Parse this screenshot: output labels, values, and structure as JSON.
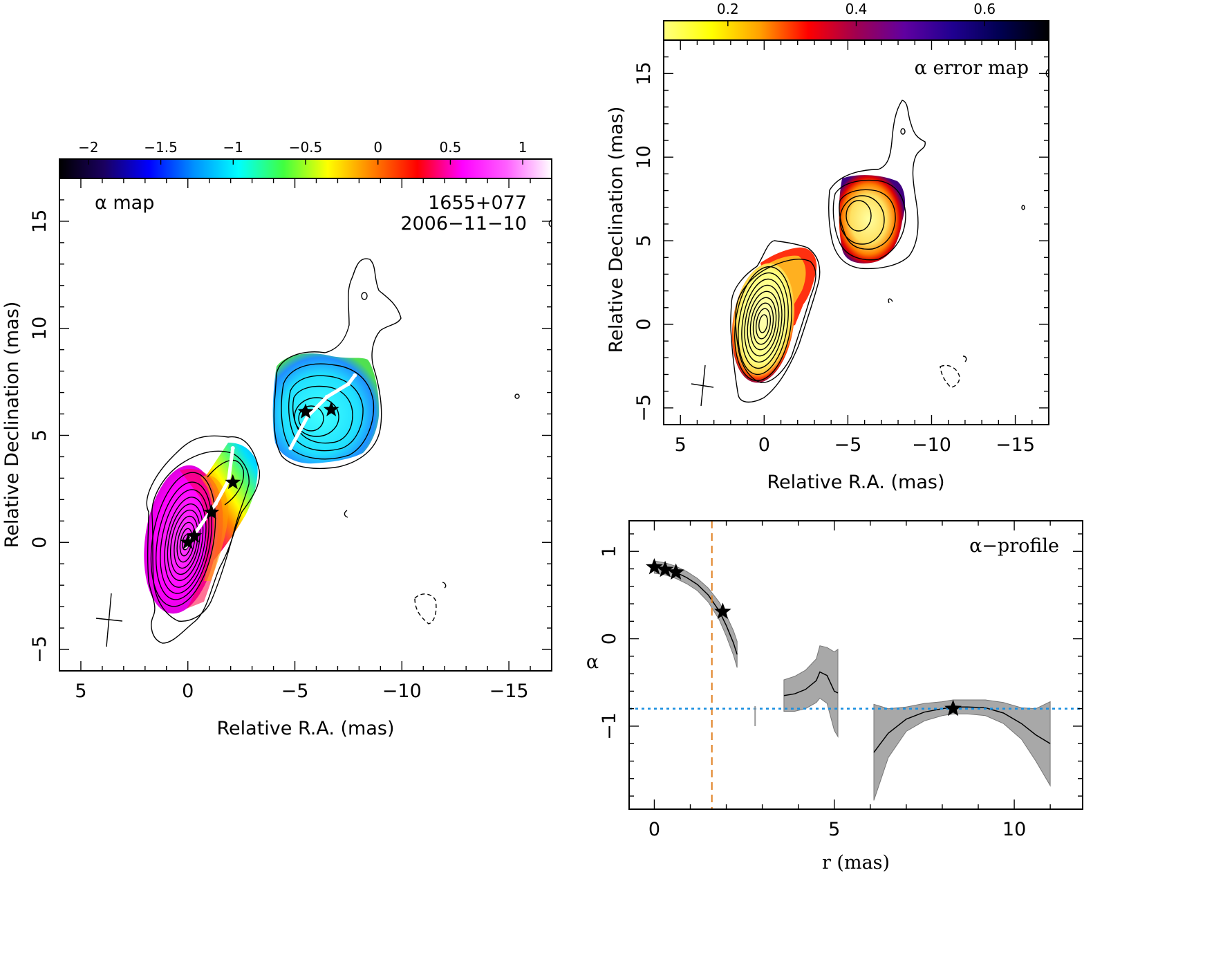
{
  "colors": {
    "alpha_ramp": [
      "#000000",
      "#1a0060",
      "#0000ff",
      "#0090ff",
      "#00ffff",
      "#40ff40",
      "#ffff00",
      "#ff8000",
      "#ff0000",
      "#ff00ff",
      "#ff60ff",
      "#ffffff"
    ],
    "error_ramp": [
      "#ffff80",
      "#ffff00",
      "#ffa000",
      "#ff0000",
      "#a00050",
      "#6000a0",
      "#200090",
      "#000050",
      "#000000"
    ],
    "profile_band": "#a8a8a8",
    "orange_dashed": "#e08020",
    "blue_dotted": "#1a8fe0"
  },
  "chart_data": [
    {
      "id": "alpha-map",
      "type": "heatmap",
      "panel_label": "α map",
      "source_name": "1655+077",
      "epoch": "2006−11−10",
      "xlabel": "Relative R.A. (mas)",
      "ylabel": "Relative Declination (mas)",
      "xlim": [
        6,
        -17
      ],
      "ylim": [
        -6,
        17
      ],
      "xticks": [
        5,
        0,
        -5,
        -10,
        -15
      ],
      "yticks": [
        -5,
        0,
        5,
        10,
        15
      ],
      "xtick_labels": [
        "5",
        "0",
        "−5",
        "−10",
        "−15"
      ],
      "ytick_labels": [
        "−5",
        "0",
        "5",
        "10",
        "15"
      ],
      "colorbar": {
        "range": [
          -2.2,
          1.2
        ],
        "ticks": [
          -2,
          -1.5,
          -1,
          -0.5,
          0,
          0.5,
          1
        ],
        "tick_labels": [
          "−2",
          "−1.5",
          "−1",
          "−0.5",
          "0",
          "0.5",
          "1"
        ]
      },
      "stars": [
        [
          0,
          0
        ],
        [
          -0.3,
          0.3
        ],
        [
          -1.1,
          1.4
        ],
        [
          -2.1,
          2.8
        ],
        [
          -5.5,
          6.1
        ],
        [
          -6.7,
          6.2
        ]
      ],
      "ridge_line": [
        [
          0.1,
          -0.2
        ],
        [
          -0.6,
          0.8
        ],
        [
          -1.3,
          1.8
        ],
        [
          -1.9,
          2.9
        ],
        [
          -2.1,
          4.4
        ]
      ],
      "ridge_line_2": [
        [
          -4.8,
          4.4
        ],
        [
          -5.6,
          5.9
        ],
        [
          -6.5,
          6.8
        ],
        [
          -7.5,
          7.4
        ],
        [
          -7.8,
          7.8
        ]
      ]
    },
    {
      "id": "alpha-error-map",
      "type": "heatmap",
      "panel_label": "α error map",
      "xlabel": "Relative R.A. (mas)",
      "ylabel": "Relative Declination (mas)",
      "xlim": [
        6,
        -17
      ],
      "ylim": [
        -6,
        17
      ],
      "xticks": [
        5,
        0,
        -5,
        -10,
        -15
      ],
      "yticks": [
        -5,
        0,
        5,
        10,
        15
      ],
      "xtick_labels": [
        "5",
        "0",
        "−5",
        "−10",
        "−15"
      ],
      "ytick_labels": [
        "−5",
        "0",
        "5",
        "10",
        "15"
      ],
      "colorbar": {
        "range": [
          0.1,
          0.7
        ],
        "ticks": [
          0.2,
          0.4,
          0.6
        ],
        "tick_labels": [
          "0.2",
          "0.4",
          "0.6"
        ]
      }
    },
    {
      "id": "alpha-profile",
      "type": "line",
      "panel_label": "α−profile",
      "xlabel": "r (mas)",
      "ylabel": "α",
      "xlim": [
        -0.7,
        11.9
      ],
      "ylim": [
        -1.95,
        1.35
      ],
      "xticks": [
        0,
        5,
        10
      ],
      "yticks": [
        -1,
        0,
        1
      ],
      "xtick_labels": [
        "0",
        "5",
        "10"
      ],
      "ytick_labels": [
        "−1",
        "0",
        "1"
      ],
      "vline_r": 1.6,
      "hline_alpha": -0.8,
      "segments": [
        {
          "r": [
            0,
            0.3,
            0.6,
            0.9,
            1.2,
            1.5,
            1.8,
            2.0,
            2.2,
            2.3
          ],
          "alpha": [
            0.82,
            0.8,
            0.76,
            0.7,
            0.62,
            0.5,
            0.32,
            0.15,
            -0.05,
            -0.18
          ],
          "err": [
            0.07,
            0.07,
            0.07,
            0.07,
            0.07,
            0.08,
            0.1,
            0.12,
            0.14,
            0.15
          ]
        },
        {
          "r": [
            3.6,
            3.9,
            4.2,
            4.5,
            4.6,
            4.8,
            5.0,
            5.1
          ],
          "alpha": [
            -0.65,
            -0.63,
            -0.58,
            -0.48,
            -0.38,
            -0.42,
            -0.6,
            -0.62
          ],
          "err": [
            0.18,
            0.2,
            0.22,
            0.25,
            0.3,
            0.32,
            0.45,
            0.5
          ]
        },
        {
          "r": [
            6.1,
            6.5,
            7.0,
            7.5,
            8.0,
            8.3,
            8.7,
            9.2,
            9.7,
            10.2,
            10.6,
            11.0
          ],
          "alpha": [
            -1.3,
            -1.08,
            -0.92,
            -0.84,
            -0.8,
            -0.78,
            -0.78,
            -0.79,
            -0.85,
            -0.97,
            -1.1,
            -1.2
          ],
          "err": [
            0.55,
            0.28,
            0.14,
            0.1,
            0.08,
            0.08,
            0.08,
            0.09,
            0.12,
            0.18,
            0.3,
            0.48
          ]
        }
      ],
      "tick_mark": {
        "r": 2.8,
        "alpha": [
          -0.77,
          -1.0
        ]
      },
      "stars": [
        [
          0,
          0.82
        ],
        [
          0.3,
          0.79
        ],
        [
          0.6,
          0.76
        ],
        [
          1.9,
          0.31
        ],
        [
          8.3,
          -0.8
        ]
      ]
    }
  ]
}
